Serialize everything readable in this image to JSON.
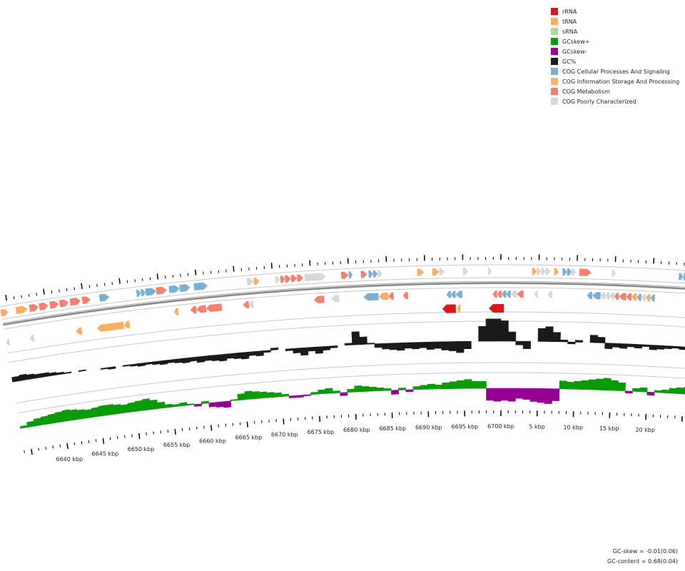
{
  "legend": {
    "items": [
      {
        "label": "rRNA",
        "color": "#d7191c"
      },
      {
        "label": "tRNA",
        "color": "#fdae61"
      },
      {
        "label": "sRNA",
        "color": "#a6dba0"
      },
      {
        "label": "GCskew+",
        "color": "#0a9a0a"
      },
      {
        "label": "GCskew-",
        "color": "#940094"
      },
      {
        "label": "GC%",
        "color": "#1a1a1a"
      },
      {
        "label": "COG Cellular Processes And Signaling",
        "color": "#7aaed4"
      },
      {
        "label": "COG Information Storage And Processing",
        "color": "#fdb462"
      },
      {
        "label": "COG Metabolism",
        "color": "#f58070"
      },
      {
        "label": "COG Poorly Characterized",
        "color": "#d8d8d8"
      }
    ]
  },
  "stats": {
    "gc_skew": "GC-skew = -0.01(0.06)",
    "gc_content": "GC-content = 0.68(0.04)"
  },
  "chart_data": {
    "type": "circular-genome-map",
    "view": "zoomed arc across genome origin",
    "x_unit": "kbp",
    "tick_labels": [
      "6640 kbp",
      "6645 kbp",
      "6650 kbp",
      "6655 kbp",
      "6660 kbp",
      "6665 kbp",
      "6670 kbp",
      "6675 kbp",
      "6680 kbp",
      "6685 kbp",
      "6690 kbp",
      "6695 kbp",
      "6700 kbp",
      "5 kbp",
      "10 kbp",
      "15 kbp",
      "20 kbp"
    ],
    "tick_positions_kbp": [
      6640,
      6645,
      6650,
      6655,
      6660,
      6665,
      6670,
      6675,
      6680,
      6685,
      6690,
      6695,
      6700,
      6705,
      6710,
      6715,
      6720
    ],
    "genome_length_kbp": 6700,
    "range_kbp": [
      6634,
      6725
    ],
    "tracks": [
      "forward-strand CDS",
      "reverse-strand CDS",
      "RNA",
      "GC%",
      "GC-skew"
    ],
    "forward_cds": [
      {
        "start": 6634.0,
        "end": 6635.0,
        "cat": "tRNA"
      },
      {
        "start": 6636.0,
        "end": 6637.5,
        "cat": "tRNA"
      },
      {
        "start": 6637.8,
        "end": 6639.0,
        "cat": "COG Metabolism"
      },
      {
        "start": 6639.1,
        "end": 6640.3,
        "cat": "COG Metabolism"
      },
      {
        "start": 6640.5,
        "end": 6641.7,
        "cat": "COG Metabolism"
      },
      {
        "start": 6641.8,
        "end": 6643.0,
        "cat": "COG Metabolism"
      },
      {
        "start": 6643.2,
        "end": 6644.6,
        "cat": "COG Metabolism"
      },
      {
        "start": 6644.8,
        "end": 6645.9,
        "cat": "COG Metabolism"
      },
      {
        "start": 6647.1,
        "end": 6648.4,
        "cat": "COG Cellular Processes And Signaling"
      },
      {
        "start": 6652.0,
        "end": 6652.6,
        "cat": "COG Cellular Processes And Signaling"
      },
      {
        "start": 6652.6,
        "end": 6653.2,
        "cat": "COG Cellular Processes And Signaling"
      },
      {
        "start": 6653.2,
        "end": 6654.6,
        "cat": "COG Cellular Processes And Signaling"
      },
      {
        "start": 6654.6,
        "end": 6656.0,
        "cat": "COG Metabolism"
      },
      {
        "start": 6656.3,
        "end": 6657.7,
        "cat": "COG Cellular Processes And Signaling"
      },
      {
        "start": 6657.7,
        "end": 6659.1,
        "cat": "COG Cellular Processes And Signaling"
      },
      {
        "start": 6659.6,
        "end": 6661.4,
        "cat": "COG Cellular Processes And Signaling"
      },
      {
        "start": 6666.6,
        "end": 6667.5,
        "cat": "COG Poorly Characterized"
      },
      {
        "start": 6667.5,
        "end": 6668.2,
        "cat": "tRNA"
      },
      {
        "start": 6670.3,
        "end": 6671.0,
        "cat": "COG Poorly Characterized"
      },
      {
        "start": 6671.0,
        "end": 6671.6,
        "cat": "COG Metabolism"
      },
      {
        "start": 6671.6,
        "end": 6672.4,
        "cat": "COG Metabolism"
      },
      {
        "start": 6672.4,
        "end": 6673.2,
        "cat": "COG Metabolism"
      },
      {
        "start": 6673.2,
        "end": 6674.0,
        "cat": "COG Metabolism"
      },
      {
        "start": 6674.2,
        "end": 6677.0,
        "cat": "COG Poorly Characterized"
      },
      {
        "start": 6679.0,
        "end": 6680.0,
        "cat": "COG Metabolism"
      },
      {
        "start": 6680.0,
        "end": 6680.5,
        "cat": "COG Cellular Processes And Signaling"
      },
      {
        "start": 6681.6,
        "end": 6682.4,
        "cat": "COG Metabolism"
      },
      {
        "start": 6682.6,
        "end": 6683.2,
        "cat": "COG Cellular Processes And Signaling"
      },
      {
        "start": 6683.2,
        "end": 6683.8,
        "cat": "COG Cellular Processes And Signaling"
      },
      {
        "start": 6683.8,
        "end": 6684.4,
        "cat": "COG Poorly Characterized"
      },
      {
        "start": 6689.0,
        "end": 6689.9,
        "cat": "tRNA"
      },
      {
        "start": 6691.0,
        "end": 6691.9,
        "cat": "tRNA"
      },
      {
        "start": 6691.9,
        "end": 6692.6,
        "cat": "COG Poorly Characterized"
      },
      {
        "start": 6695.0,
        "end": 6695.7,
        "cat": "COG Poorly Characterized"
      },
      {
        "start": 6698.3,
        "end": 6698.8,
        "cat": "COG Poorly Characterized"
      },
      {
        "start": 6704.1,
        "end": 6704.7,
        "cat": "tRNA"
      },
      {
        "start": 6704.7,
        "end": 6705.3,
        "cat": "COG Poorly Characterized"
      },
      {
        "start": 6705.3,
        "end": 6705.9,
        "cat": "COG Poorly Characterized"
      },
      {
        "start": 6705.9,
        "end": 6706.5,
        "cat": "COG Poorly Characterized"
      },
      {
        "start": 6707.0,
        "end": 6707.6,
        "cat": "tRNA"
      },
      {
        "start": 6708.1,
        "end": 6708.7,
        "cat": "COG Cellular Processes And Signaling"
      },
      {
        "start": 6708.7,
        "end": 6709.3,
        "cat": "COG Cellular Processes And Signaling"
      },
      {
        "start": 6709.3,
        "end": 6709.9,
        "cat": "COG Poorly Characterized"
      },
      {
        "start": 6710.3,
        "end": 6711.9,
        "cat": "COG Metabolism"
      },
      {
        "start": 6714.6,
        "end": 6715.1,
        "cat": "COG Poorly Characterized"
      },
      {
        "start": 6723.4,
        "end": 6724.0,
        "cat": "COG Cellular Processes And Signaling"
      },
      {
        "start": 6724.0,
        "end": 6724.6,
        "cat": "COG Cellular Processes And Signaling"
      },
      {
        "start": 6724.6,
        "end": 6725.0,
        "cat": "COG Cellular Processes And Signaling"
      }
    ],
    "reverse_cds": [
      {
        "start": 6634.0,
        "end": 6634.5,
        "cat": "COG Poorly Characterized",
        "ring": 2
      },
      {
        "start": 6637.2,
        "end": 6637.8,
        "cat": "COG Poorly Characterized",
        "ring": 2
      },
      {
        "start": 6643.4,
        "end": 6644.2,
        "cat": "tRNA",
        "ring": 2
      },
      {
        "start": 6646.2,
        "end": 6649.8,
        "cat": "tRNA",
        "ring": 2
      },
      {
        "start": 6649.8,
        "end": 6650.6,
        "cat": "tRNA",
        "ring": 2
      },
      {
        "start": 6656.6,
        "end": 6657.2,
        "cat": "tRNA",
        "ring": 1
      },
      {
        "start": 6658.8,
        "end": 6659.6,
        "cat": "COG Metabolism",
        "ring": 1
      },
      {
        "start": 6659.6,
        "end": 6660.9,
        "cat": "COG Metabolism",
        "ring": 1
      },
      {
        "start": 6660.9,
        "end": 6663.0,
        "cat": "COG Metabolism",
        "ring": 1
      },
      {
        "start": 6665.8,
        "end": 6666.6,
        "cat": "COG Metabolism",
        "ring": 1
      },
      {
        "start": 6666.6,
        "end": 6667.2,
        "cat": "COG Poorly Characterized",
        "ring": 1
      },
      {
        "start": 6675.2,
        "end": 6676.6,
        "cat": "COG Metabolism",
        "ring": 1
      },
      {
        "start": 6677.5,
        "end": 6678.6,
        "cat": "COG Poorly Characterized",
        "ring": 1
      },
      {
        "start": 6681.8,
        "end": 6683.8,
        "cat": "COG Cellular Processes And Signaling",
        "ring": 1
      },
      {
        "start": 6683.8,
        "end": 6685.1,
        "cat": "tRNA",
        "ring": 1
      },
      {
        "start": 6685.1,
        "end": 6685.8,
        "cat": "COG Metabolism",
        "ring": 1
      },
      {
        "start": 6687.0,
        "end": 6687.7,
        "cat": "COG Metabolism",
        "ring": 1
      },
      {
        "start": 6692.8,
        "end": 6693.4,
        "cat": "COG Cellular Processes And Signaling",
        "ring": 1
      },
      {
        "start": 6693.4,
        "end": 6694.0,
        "cat": "COG Cellular Processes And Signaling",
        "ring": 1
      },
      {
        "start": 6694.0,
        "end": 6694.9,
        "cat": "COG Cellular Processes And Signaling",
        "ring": 1
      },
      {
        "start": 6698.9,
        "end": 6699.5,
        "cat": "COG Metabolism",
        "ring": 1
      },
      {
        "start": 6699.5,
        "end": 6700.1,
        "cat": "COG Metabolism",
        "ring": 1
      },
      {
        "start": 6700.1,
        "end": 6700.7,
        "cat": "COG Cellular Processes And Signaling",
        "ring": 1
      },
      {
        "start": 6700.7,
        "end": 6701.3,
        "cat": "COG Cellular Processes And Signaling",
        "ring": 1
      },
      {
        "start": 6701.3,
        "end": 6702.1,
        "cat": "COG Poorly Characterized",
        "ring": 1
      },
      {
        "start": 6702.1,
        "end": 6703.0,
        "cat": "COG Metabolism",
        "ring": 1
      },
      {
        "start": 6704.4,
        "end": 6704.9,
        "cat": "COG Poorly Characterized",
        "ring": 1
      },
      {
        "start": 6706.2,
        "end": 6706.8,
        "cat": "COG Poorly Characterized",
        "ring": 1
      },
      {
        "start": 6711.4,
        "end": 6712.1,
        "cat": "COG Cellular Processes And Signaling",
        "ring": 1
      },
      {
        "start": 6712.1,
        "end": 6713.2,
        "cat": "COG Cellular Processes And Signaling",
        "ring": 1
      },
      {
        "start": 6713.2,
        "end": 6713.8,
        "cat": "COG Poorly Characterized",
        "ring": 1
      },
      {
        "start": 6713.8,
        "end": 6714.4,
        "cat": "COG Poorly Characterized",
        "ring": 1
      },
      {
        "start": 6714.4,
        "end": 6715.0,
        "cat": "COG Poorly Characterized",
        "ring": 1
      },
      {
        "start": 6715.0,
        "end": 6715.6,
        "cat": "COG Metabolism",
        "ring": 1
      },
      {
        "start": 6715.6,
        "end": 6716.6,
        "cat": "COG Metabolism",
        "ring": 1
      },
      {
        "start": 6716.6,
        "end": 6717.3,
        "cat": "COG Metabolism",
        "ring": 1
      },
      {
        "start": 6717.3,
        "end": 6718.0,
        "cat": "tRNA",
        "ring": 1
      },
      {
        "start": 6718.0,
        "end": 6718.6,
        "cat": "COG Cellular Processes And Signaling",
        "ring": 1
      },
      {
        "start": 6718.6,
        "end": 6719.2,
        "cat": "COG Poorly Characterized",
        "ring": 1
      },
      {
        "start": 6719.2,
        "end": 6719.8,
        "cat": "tRNA",
        "ring": 1
      },
      {
        "start": 6719.8,
        "end": 6720.4,
        "cat": "COG Cellular Processes And Signaling",
        "ring": 1
      }
    ],
    "rna_features": [
      {
        "start": 6692.2,
        "end": 6694.0,
        "cat": "rRNA"
      },
      {
        "start": 6694.2,
        "end": 6694.6,
        "cat": "tRNA"
      },
      {
        "start": 6698.4,
        "end": 6700.4,
        "cat": "rRNA"
      }
    ],
    "gc_percent": {
      "baseline": 0.68,
      "start_kbp": 6634,
      "step_kbp": 1,
      "values": [
        0.705,
        0.71,
        0.705,
        0.7,
        0.7,
        0.695,
        0.69,
        0.685,
        0.68,
        0.685,
        0.68,
        0.68,
        0.675,
        0.67,
        0.68,
        0.675,
        0.67,
        0.665,
        0.67,
        0.665,
        0.66,
        0.665,
        0.66,
        0.655,
        0.66,
        0.65,
        0.655,
        0.65,
        0.645,
        0.655,
        0.65,
        0.645,
        0.66,
        0.655,
        0.67,
        0.69,
        0.68,
        0.67,
        0.655,
        0.64,
        0.66,
        0.645,
        0.66,
        0.67,
        0.68,
        0.69,
        0.75,
        0.72,
        0.685,
        0.66,
        0.65,
        0.645,
        0.64,
        0.65,
        0.645,
        0.65,
        0.64,
        0.645,
        0.635,
        0.63,
        0.62,
        0.64,
        0.68,
        0.76,
        0.8,
        0.8,
        0.79,
        0.73,
        0.66,
        0.64,
        0.68,
        0.75,
        0.76,
        0.73,
        0.69,
        0.67,
        0.69,
        0.68,
        0.72,
        0.71,
        0.65,
        0.66,
        0.655,
        0.665,
        0.66,
        0.67,
        0.655,
        0.66,
        0.665,
        0.67,
        0.665,
        0.66
      ]
    },
    "gc_skew": {
      "baseline": 0,
      "start_kbp": 6634,
      "step_kbp": 1,
      "values": [
        0.02,
        0.05,
        0.07,
        0.08,
        0.09,
        0.1,
        0.11,
        0.1,
        0.09,
        0.08,
        0.09,
        0.1,
        0.1,
        0.09,
        0.08,
        0.09,
        0.1,
        0.11,
        0.09,
        0.06,
        0.03,
        0.02,
        0.03,
        0.01,
        -0.02,
        0.02,
        -0.04,
        -0.05,
        -0.06,
        0.01,
        0.06,
        0.08,
        0.07,
        0.06,
        0.05,
        0.04,
        0.02,
        -0.02,
        -0.02,
        -0.01,
        0.02,
        0.04,
        0.05,
        0.02,
        -0.03,
        0.03,
        0.06,
        0.05,
        0.04,
        0.03,
        0.02,
        -0.04,
        0.02,
        -0.02,
        0.03,
        0.04,
        0.05,
        0.04,
        0.06,
        0.07,
        0.08,
        0.09,
        0.07,
        0.07,
        -0.12,
        -0.13,
        -0.12,
        -0.13,
        -0.1,
        -0.11,
        -0.13,
        -0.14,
        -0.15,
        -0.12,
        0.08,
        0.07,
        0.08,
        0.09,
        0.1,
        0.11,
        0.12,
        0.1,
        0.08,
        -0.02,
        0.03,
        0.04,
        -0.03,
        0.02,
        0.03,
        0.05,
        0.06,
        0.07
      ]
    }
  }
}
